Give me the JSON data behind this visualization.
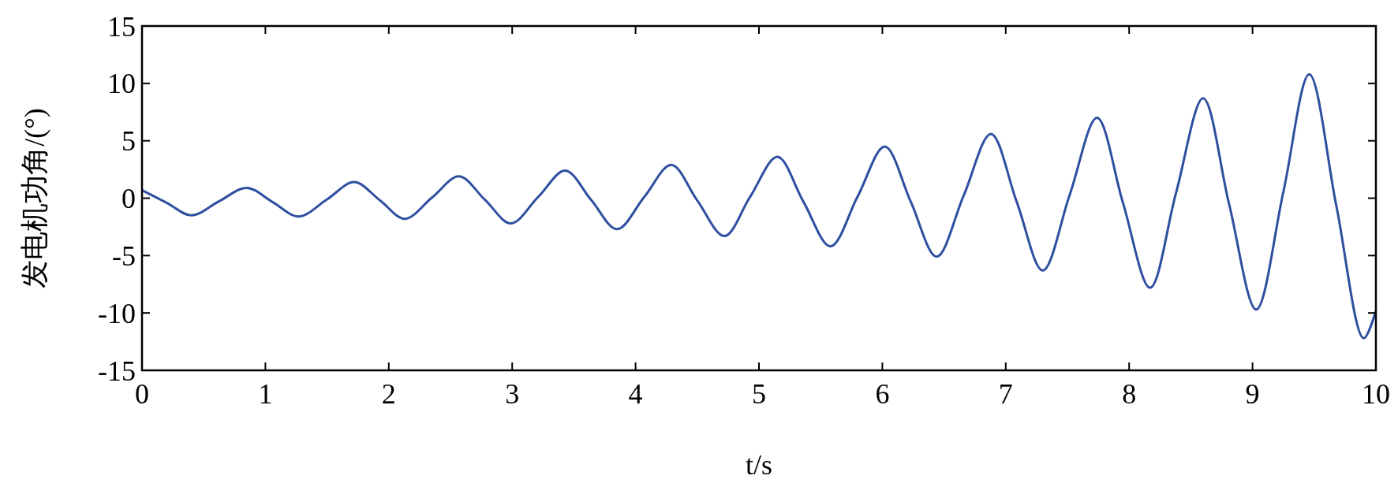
{
  "chart_data": {
    "type": "line",
    "xlabel": "t/s",
    "ylabel": "发电机功角/(°)",
    "xlim": [
      0,
      10
    ],
    "ylim": [
      -15,
      15
    ],
    "xticks": [
      0,
      1,
      2,
      3,
      4,
      5,
      6,
      7,
      8,
      9,
      10
    ],
    "yticks": [
      -15,
      -10,
      -5,
      0,
      5,
      10,
      15
    ],
    "grid": false,
    "marker": "none",
    "line_style": "solid",
    "series": [
      {
        "color": "#2e4fa0",
        "x": [
          0,
          0.2,
          0.4,
          0.62,
          0.85,
          1.06,
          1.27,
          1.5,
          1.72,
          1.93,
          2.13,
          2.35,
          2.57,
          2.78,
          2.99,
          3.21,
          3.43,
          3.64,
          3.85,
          4.07,
          4.29,
          4.5,
          4.72,
          4.93,
          5.15,
          5.36,
          5.58,
          5.8,
          6.02,
          6.23,
          6.44,
          6.66,
          6.88,
          7.09,
          7.3,
          7.52,
          7.74,
          7.95,
          8.17,
          8.38,
          8.6,
          8.81,
          9.03,
          9.25,
          9.46,
          9.68,
          9.9,
          10
        ],
        "values": [
          0.7,
          -0.4,
          -1.5,
          -0.3,
          0.9,
          -0.35,
          -1.6,
          -0.1,
          1.4,
          -0.2,
          -1.8,
          0.05,
          1.9,
          -0.15,
          -2.2,
          0.1,
          2.4,
          -0.15,
          -2.7,
          0.1,
          2.9,
          -0.2,
          -3.3,
          0.15,
          3.6,
          -0.3,
          -4.2,
          0.15,
          4.5,
          -0.3,
          -5.1,
          0.25,
          5.6,
          -0.35,
          -6.3,
          0.35,
          7.0,
          -0.4,
          -7.8,
          0.45,
          8.7,
          -0.5,
          -9.7,
          0.55,
          10.8,
          -0.7,
          -12.2,
          -9.8
        ]
      }
    ]
  }
}
